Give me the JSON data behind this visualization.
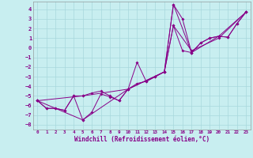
{
  "xlabel": "Windchill (Refroidissement éolien,°C)",
  "bg_color": "#c8eef0",
  "line_color": "#880088",
  "grid_color": "#a8d8dc",
  "xlim": [
    -0.5,
    23.5
  ],
  "ylim": [
    -8.5,
    4.8
  ],
  "yticks": [
    -8,
    -7,
    -6,
    -5,
    -4,
    -3,
    -2,
    -1,
    0,
    1,
    2,
    3,
    4
  ],
  "xticks": [
    0,
    1,
    2,
    3,
    4,
    5,
    6,
    7,
    8,
    9,
    10,
    11,
    12,
    13,
    14,
    15,
    16,
    17,
    18,
    19,
    20,
    21,
    22,
    23
  ],
  "s1": [
    [
      0,
      -5.5
    ],
    [
      1,
      -6.3
    ],
    [
      2,
      -6.3
    ],
    [
      3,
      -6.5
    ],
    [
      4,
      -5.0
    ],
    [
      5,
      -7.5
    ],
    [
      6,
      -6.7
    ],
    [
      7,
      -4.8
    ],
    [
      8,
      -5.1
    ],
    [
      9,
      -5.5
    ],
    [
      10,
      -4.3
    ],
    [
      11,
      -3.7
    ],
    [
      12,
      -3.5
    ],
    [
      13,
      -3.0
    ],
    [
      14,
      -2.5
    ],
    [
      15,
      2.3
    ],
    [
      16,
      -0.3
    ],
    [
      17,
      -0.5
    ],
    [
      18,
      0.5
    ],
    [
      19,
      1.0
    ],
    [
      20,
      1.2
    ],
    [
      21,
      1.1
    ],
    [
      22,
      2.5
    ],
    [
      23,
      3.7
    ]
  ],
  "s2": [
    [
      0,
      -5.5
    ],
    [
      1,
      -6.3
    ],
    [
      2,
      -6.3
    ],
    [
      3,
      -6.5
    ],
    [
      4,
      -5.0
    ],
    [
      5,
      -5.0
    ],
    [
      6,
      -4.7
    ],
    [
      7,
      -4.5
    ],
    [
      8,
      -5.0
    ],
    [
      9,
      -5.5
    ],
    [
      10,
      -4.3
    ],
    [
      11,
      -1.5
    ],
    [
      12,
      -3.5
    ],
    [
      13,
      -3.0
    ],
    [
      14,
      -2.5
    ],
    [
      15,
      4.5
    ],
    [
      16,
      3.0
    ],
    [
      17,
      -0.5
    ],
    [
      18,
      0.5
    ],
    [
      19,
      1.0
    ],
    [
      20,
      1.2
    ],
    [
      21,
      1.1
    ],
    [
      22,
      2.5
    ],
    [
      23,
      3.7
    ]
  ],
  "s3": [
    [
      0,
      -5.5
    ],
    [
      5,
      -5.0
    ],
    [
      10,
      -4.3
    ],
    [
      14,
      -2.5
    ],
    [
      15,
      2.3
    ],
    [
      17,
      -0.3
    ],
    [
      20,
      1.0
    ],
    [
      23,
      3.7
    ]
  ],
  "s4": [
    [
      0,
      -5.5
    ],
    [
      5,
      -7.5
    ],
    [
      10,
      -4.3
    ],
    [
      14,
      -2.5
    ],
    [
      15,
      4.5
    ],
    [
      17,
      -0.5
    ],
    [
      20,
      1.2
    ],
    [
      23,
      3.7
    ]
  ]
}
